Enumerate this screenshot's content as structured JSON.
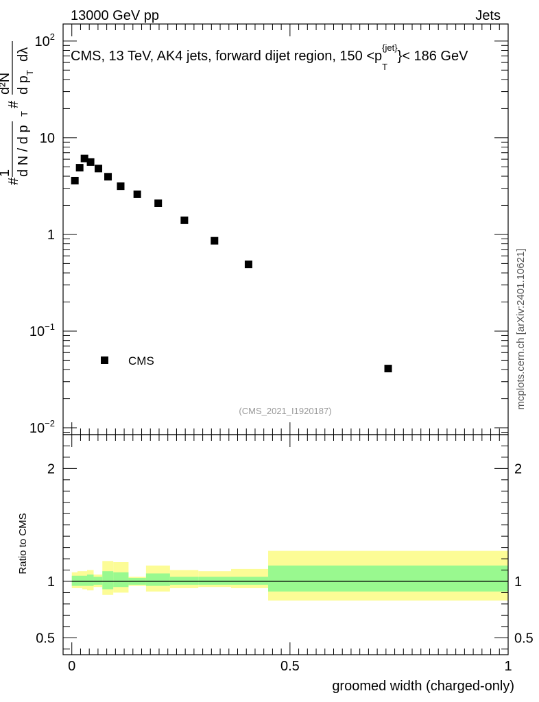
{
  "header": {
    "left": "13000 GeV pp",
    "right": "Jets"
  },
  "side_label": "mcplots.cern.ch [arXiv:2401.10621]",
  "watermark": "(CMS_2021_I1920187)",
  "main_title": {
    "prefix": "CMS, 13 TeV, AK4 jets, forward dijet region, 150 <p",
    "sub": "T",
    "sup": "{jet}",
    "suffix": "}< 186 GeV"
  },
  "y_title_top": {
    "n1": "#",
    "n2": "1",
    "d": "d N / d p",
    "n3": "#",
    "frac_num": "d²N",
    "frac_den": "d p",
    "den_sub": "T",
    "den_tail": "dλ"
  },
  "y_title_bottom": "Ratio to CMS",
  "x_title": "groomed width (charged-only)",
  "colors": {
    "band_inner": "#99f98f",
    "band_outer": "#fcfc96",
    "marker": "#000000",
    "line": "#000000"
  },
  "chart_data": [
    {
      "type": "scatter",
      "title": "CMS, 13 TeV, AK4 jets, forward dijet region, 150 <p_T^{jet}< 186 GeV",
      "xlabel": "groomed width (charged-only)",
      "ylabel": "# 1 / dN/dpT # d²N / dpT dλ",
      "yscale": "log",
      "xlim": [
        -0.02,
        1.0
      ],
      "ylim": [
        0.0085,
        150
      ],
      "y_tick_labels": [
        {
          "v": 100,
          "base": "10",
          "exp": "2"
        },
        {
          "v": 10,
          "base": "10",
          "exp": ""
        },
        {
          "v": 1,
          "base": "1",
          "exp": ""
        },
        {
          "v": 0.1,
          "base": "10",
          "exp": "−1"
        },
        {
          "v": 0.01,
          "base": "10",
          "exp": "−2"
        }
      ],
      "legend": {
        "label": "CMS",
        "placement": "lower-left"
      },
      "series": [
        {
          "name": "CMS",
          "points": [
            {
              "x": 0.007,
              "y": 3.6
            },
            {
              "x": 0.018,
              "y": 4.9
            },
            {
              "x": 0.029,
              "y": 6.1
            },
            {
              "x": 0.043,
              "y": 5.6
            },
            {
              "x": 0.061,
              "y": 4.8
            },
            {
              "x": 0.083,
              "y": 3.95
            },
            {
              "x": 0.112,
              "y": 3.15
            },
            {
              "x": 0.15,
              "y": 2.6
            },
            {
              "x": 0.198,
              "y": 2.1
            },
            {
              "x": 0.258,
              "y": 1.4
            },
            {
              "x": 0.327,
              "y": 0.86
            },
            {
              "x": 0.405,
              "y": 0.49
            },
            {
              "x": 0.725,
              "y": 0.041
            }
          ]
        }
      ]
    },
    {
      "type": "area",
      "ylabel": "Ratio to CMS",
      "xlabel": "groomed width (charged-only)",
      "xlim": [
        -0.02,
        1.0
      ],
      "ylim": [
        0.35,
        2.3
      ],
      "x_ticks": [
        {
          "v": 0,
          "label": "0"
        },
        {
          "v": 0.5,
          "label": "0.5"
        },
        {
          "v": 1,
          "label": "1"
        }
      ],
      "y_ticks": [
        {
          "v": 0.5,
          "label": "0.5"
        },
        {
          "v": 1,
          "label": "1"
        },
        {
          "v": 2,
          "label": "2"
        }
      ],
      "reference_line": 1.0,
      "bins": [
        {
          "lo": 0.0,
          "hi": 0.013,
          "inner": [
            0.96,
            1.05
          ],
          "outer": [
            0.94,
            1.08
          ]
        },
        {
          "lo": 0.013,
          "hi": 0.024,
          "inner": [
            0.96,
            1.05
          ],
          "outer": [
            0.94,
            1.09
          ]
        },
        {
          "lo": 0.024,
          "hi": 0.035,
          "inner": [
            0.96,
            1.05
          ],
          "outer": [
            0.93,
            1.09
          ]
        },
        {
          "lo": 0.035,
          "hi": 0.05,
          "inner": [
            0.96,
            1.06
          ],
          "outer": [
            0.92,
            1.1
          ]
        },
        {
          "lo": 0.05,
          "hi": 0.07,
          "inner": [
            0.97,
            1.04
          ],
          "outer": [
            0.95,
            1.06
          ]
        },
        {
          "lo": 0.07,
          "hi": 0.095,
          "inner": [
            0.93,
            1.09
          ],
          "outer": [
            0.88,
            1.18
          ]
        },
        {
          "lo": 0.095,
          "hi": 0.13,
          "inner": [
            0.95,
            1.08
          ],
          "outer": [
            0.9,
            1.17
          ]
        },
        {
          "lo": 0.13,
          "hi": 0.17,
          "inner": [
            0.97,
            1.03
          ],
          "outer": [
            0.96,
            1.04
          ]
        },
        {
          "lo": 0.17,
          "hi": 0.225,
          "inner": [
            0.96,
            1.07
          ],
          "outer": [
            0.91,
            1.14
          ]
        },
        {
          "lo": 0.225,
          "hi": 0.29,
          "inner": [
            0.97,
            1.04
          ],
          "outer": [
            0.94,
            1.1
          ]
        },
        {
          "lo": 0.29,
          "hi": 0.365,
          "inner": [
            0.97,
            1.04
          ],
          "outer": [
            0.95,
            1.09
          ]
        },
        {
          "lo": 0.365,
          "hi": 0.45,
          "inner": [
            0.97,
            1.04
          ],
          "outer": [
            0.94,
            1.11
          ]
        },
        {
          "lo": 0.45,
          "hi": 1.0,
          "inner": [
            0.91,
            1.14
          ],
          "outer": [
            0.83,
            1.27
          ]
        }
      ]
    }
  ]
}
